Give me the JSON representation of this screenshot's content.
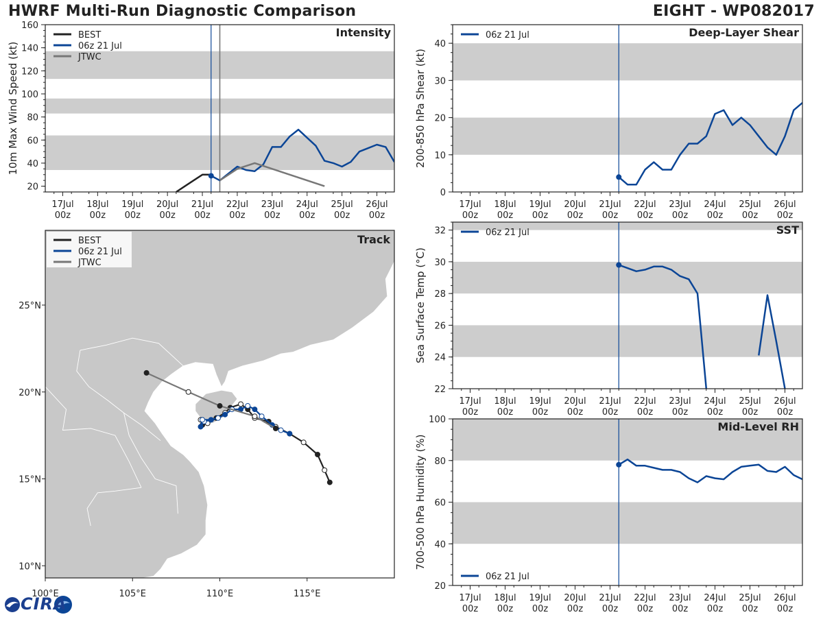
{
  "header": {
    "title": "HWRF Multi-Run Diagnostic Comparison",
    "storm": "EIGHT - WP082017"
  },
  "logo": {
    "text": "CIRA"
  },
  "colors": {
    "best": "#222222",
    "run": "#0b4596",
    "jtwc": "#777777",
    "band": "#cdcdcd",
    "land": "#c8c8c8"
  },
  "time_axis": {
    "day_labels": [
      "17Jul",
      "18Jul",
      "19Jul",
      "20Jul",
      "21Jul",
      "22Jul",
      "23Jul",
      "24Jul",
      "25Jul",
      "26Jul"
    ],
    "hour_label": "00z"
  },
  "chart_data": [
    {
      "id": "intensity",
      "type": "line",
      "title": "Intensity",
      "ylabel": "10m Max Wind Speed (kt)",
      "xlim": [
        16.5,
        26.5
      ],
      "ylim": [
        15,
        160
      ],
      "yticks": [
        20,
        40,
        60,
        80,
        100,
        120,
        140,
        160
      ],
      "bands": [
        [
          34,
          64
        ],
        [
          83,
          96
        ],
        [
          113,
          137
        ]
      ],
      "legend": [
        "BEST",
        "06z 21 Jul",
        "JTWC"
      ],
      "init_time": 21.25,
      "jtwc_init": 21.5,
      "series": [
        {
          "name": "BEST",
          "x": [
            20.25,
            20.5,
            20.75,
            21.0,
            21.25
          ],
          "y": [
            15,
            20,
            25,
            30,
            30
          ]
        },
        {
          "name": "06z 21 Jul",
          "x": [
            21.25,
            21.5,
            21.75,
            22.0,
            22.25,
            22.5,
            22.75,
            23.0,
            23.25,
            23.5,
            23.75,
            24.0,
            24.25,
            24.5,
            24.75,
            25.0,
            25.25,
            25.5,
            25.75,
            26.0,
            26.25,
            26.5
          ],
          "y": [
            29,
            25,
            31,
            37,
            34,
            33,
            39,
            54,
            54,
            63,
            69,
            62,
            55,
            42,
            40,
            37,
            41,
            50,
            53,
            56,
            54,
            41
          ]
        },
        {
          "name": "JTWC",
          "x": [
            21.5,
            22.0,
            22.5,
            24.5
          ],
          "y": [
            25,
            35,
            40,
            20
          ]
        }
      ]
    },
    {
      "id": "shear",
      "type": "line",
      "title": "Deep-Layer Shear",
      "ylabel": "200-850 hPa Shear (kt)",
      "xlim": [
        16.5,
        26.5
      ],
      "ylim": [
        0,
        45
      ],
      "yticks": [
        0,
        10,
        20,
        30,
        40
      ],
      "bands": [
        [
          10,
          20
        ],
        [
          30,
          40
        ]
      ],
      "legend": [
        "06z 21 Jul"
      ],
      "init_time": 21.25,
      "series": [
        {
          "name": "06z 21 Jul",
          "x": [
            21.25,
            21.5,
            21.75,
            22.0,
            22.25,
            22.5,
            22.75,
            23.0,
            23.25,
            23.5,
            23.75,
            24.0,
            24.25,
            24.5,
            24.75,
            25.0,
            25.25,
            25.5,
            25.75,
            26.0,
            26.25,
            26.5
          ],
          "y": [
            4,
            2,
            2,
            6,
            8,
            6,
            6,
            10,
            13,
            13,
            15,
            21,
            22,
            18,
            20,
            18,
            15,
            12,
            10,
            15,
            22,
            24
          ]
        }
      ]
    },
    {
      "id": "sst",
      "type": "line",
      "title": "SST",
      "ylabel": "Sea Surface Temp (°C)",
      "xlim": [
        16.5,
        26.5
      ],
      "ylim": [
        22,
        32.5
      ],
      "yticks": [
        22,
        24,
        26,
        28,
        30,
        32
      ],
      "bands": [
        [
          24,
          26
        ],
        [
          28,
          30
        ],
        [
          32,
          34
        ]
      ],
      "legend": [
        "06z 21 Jul"
      ],
      "init_time": 21.25,
      "series": [
        {
          "name": "06z 21 Jul",
          "x": [
            21.25,
            21.5,
            21.75,
            22.0,
            22.25,
            22.5,
            22.75,
            23.0,
            23.25,
            23.5,
            23.75
          ],
          "y": [
            29.8,
            29.6,
            29.4,
            29.5,
            29.7,
            29.7,
            29.5,
            29.1,
            28.9,
            28.0,
            22.0
          ]
        },
        {
          "name": "06z 21 Jul (segment 2)",
          "x": [
            25.25,
            25.5,
            25.75,
            26.0
          ],
          "y": [
            24.1,
            27.9,
            25.0,
            22.0
          ]
        }
      ]
    },
    {
      "id": "rh",
      "type": "line",
      "title": "Mid-Level RH",
      "ylabel": "700-500 hPa Humidity (%)",
      "xlim": [
        16.5,
        26.5
      ],
      "ylim": [
        20,
        100
      ],
      "yticks": [
        20,
        40,
        60,
        80,
        100
      ],
      "bands": [
        [
          40,
          60
        ],
        [
          80,
          100
        ]
      ],
      "legend": [
        "06z 21 Jul"
      ],
      "init_time": 21.25,
      "series": [
        {
          "name": "06z 21 Jul",
          "x": [
            21.25,
            21.5,
            21.75,
            22.0,
            22.25,
            22.5,
            22.75,
            23.0,
            23.25,
            23.5,
            23.75,
            24.0,
            24.25,
            24.5,
            24.75,
            25.0,
            25.25,
            25.5,
            25.75,
            26.0,
            26.25,
            26.5
          ],
          "y": [
            78,
            80.5,
            77.5,
            77.5,
            76.5,
            75.5,
            75.5,
            74.5,
            71.5,
            69.5,
            72.5,
            71.5,
            71,
            74.5,
            77,
            77.5,
            78,
            75,
            74.5,
            77,
            73,
            71
          ]
        }
      ]
    },
    {
      "id": "track",
      "type": "scatter",
      "title": "Track",
      "xlim": [
        100,
        120
      ],
      "ylim": [
        9.3,
        29.3
      ],
      "lon_ticks": [
        100,
        105,
        110,
        115
      ],
      "lon_labels": [
        "100°E",
        "105°E",
        "110°E",
        "115°E"
      ],
      "lat_ticks": [
        10,
        15,
        20,
        25
      ],
      "lat_labels": [
        "10°N",
        "15°N",
        "20°N",
        "25°N"
      ],
      "legend": [
        "BEST",
        "06z 21 Jul",
        "JTWC"
      ],
      "series": [
        {
          "name": "BEST",
          "points": [
            [
              116.3,
              14.8
            ],
            [
              116.0,
              15.5
            ],
            [
              115.6,
              16.4
            ],
            [
              114.8,
              17.1
            ],
            [
              114.0,
              17.6
            ],
            [
              113.2,
              18.0
            ],
            [
              112.8,
              18.3
            ],
            [
              112.0,
              18.5
            ],
            [
              111.6,
              19.0
            ],
            [
              111.2,
              19.3
            ],
            [
              110.6,
              19.1
            ],
            [
              110.3,
              18.8
            ],
            [
              109.8,
              18.5
            ],
            [
              109.3,
              18.2
            ],
            [
              109.0,
              18.1
            ],
            [
              108.9,
              18.4
            ]
          ]
        },
        {
          "name": "06z 21 Jul",
          "points": [
            [
              114.0,
              17.6
            ],
            [
              113.5,
              17.8
            ],
            [
              113.0,
              18.1
            ],
            [
              112.4,
              18.6
            ],
            [
              112.0,
              19.0
            ],
            [
              111.6,
              19.2
            ],
            [
              111.2,
              19.0
            ],
            [
              110.7,
              19.0
            ],
            [
              110.3,
              18.7
            ],
            [
              109.9,
              18.5
            ],
            [
              109.5,
              18.4
            ],
            [
              109.1,
              18.3
            ],
            [
              108.9,
              18.0
            ],
            [
              109.0,
              18.4
            ],
            [
              109.5,
              18.4
            ]
          ]
        },
        {
          "name": "JTWC",
          "points": [
            [
              113.2,
              17.9
            ],
            [
              112.0,
              18.6
            ],
            [
              110.0,
              19.2
            ],
            [
              108.2,
              20.0
            ],
            [
              105.8,
              21.1
            ]
          ]
        }
      ]
    }
  ]
}
